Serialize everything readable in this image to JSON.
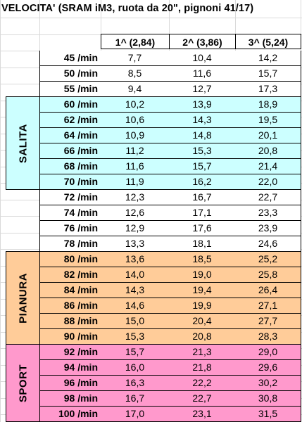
{
  "title": "VELOCITA' (SRAM iM3, ruota da 20\", pignoni 41/17)",
  "columns": [
    "1^ (2,84)",
    "2^ (3,86)",
    "3^ (5,24)"
  ],
  "colors": {
    "salita": "#ccffff",
    "pianura": "#ffcc99",
    "sport": "#ff99cc",
    "none": "#ffffff"
  },
  "groups": [
    {
      "label": "SALITA",
      "start": 60,
      "end": 70,
      "color": "#ccffff"
    },
    {
      "label": "PIANURA",
      "start": 80,
      "end": 90,
      "color": "#ffcc99"
    },
    {
      "label": "SPORT",
      "start": 92,
      "end": 100,
      "color": "#ff99cc"
    }
  ],
  "rows": [
    {
      "rpm": "45 /min",
      "v": [
        "7,7",
        "10,4",
        "14,2"
      ],
      "group": "none"
    },
    {
      "rpm": "50 /min",
      "v": [
        "8,5",
        "11,6",
        "15,7"
      ],
      "group": "none"
    },
    {
      "rpm": "55 /min",
      "v": [
        "9,4",
        "12,7",
        "17,3"
      ],
      "group": "none"
    },
    {
      "rpm": "60 /min",
      "v": [
        "10,2",
        "13,9",
        "18,9"
      ],
      "group": "salita"
    },
    {
      "rpm": "62 /min",
      "v": [
        "10,6",
        "14,3",
        "19,5"
      ],
      "group": "salita"
    },
    {
      "rpm": "64 /min",
      "v": [
        "10,9",
        "14,8",
        "20,1"
      ],
      "group": "salita"
    },
    {
      "rpm": "66 /min",
      "v": [
        "11,2",
        "15,3",
        "20,8"
      ],
      "group": "salita"
    },
    {
      "rpm": "68 /min",
      "v": [
        "11,6",
        "15,7",
        "21,4"
      ],
      "group": "salita"
    },
    {
      "rpm": "70 /min",
      "v": [
        "11,9",
        "16,2",
        "22,0"
      ],
      "group": "salita"
    },
    {
      "rpm": "72 /min",
      "v": [
        "12,3",
        "16,7",
        "22,7"
      ],
      "group": "none"
    },
    {
      "rpm": "74 /min",
      "v": [
        "12,6",
        "17,1",
        "23,3"
      ],
      "group": "none"
    },
    {
      "rpm": "76 /min",
      "v": [
        "12,9",
        "17,6",
        "23,9"
      ],
      "group": "none"
    },
    {
      "rpm": "78 /min",
      "v": [
        "13,3",
        "18,1",
        "24,6"
      ],
      "group": "none"
    },
    {
      "rpm": "80 /min",
      "v": [
        "13,6",
        "18,5",
        "25,2"
      ],
      "group": "pianura"
    },
    {
      "rpm": "82 /min",
      "v": [
        "14,0",
        "19,0",
        "25,8"
      ],
      "group": "pianura"
    },
    {
      "rpm": "84 /min",
      "v": [
        "14,3",
        "19,4",
        "26,4"
      ],
      "group": "pianura"
    },
    {
      "rpm": "86 /min",
      "v": [
        "14,6",
        "19,9",
        "27,1"
      ],
      "group": "pianura"
    },
    {
      "rpm": "88 /min",
      "v": [
        "15,0",
        "20,4",
        "27,7"
      ],
      "group": "pianura"
    },
    {
      "rpm": "90 /min",
      "v": [
        "15,3",
        "20,8",
        "28,3"
      ],
      "group": "pianura"
    },
    {
      "rpm": "92 /min",
      "v": [
        "15,7",
        "21,3",
        "29,0"
      ],
      "group": "sport"
    },
    {
      "rpm": "94 /min",
      "v": [
        "16,0",
        "21,8",
        "29,6"
      ],
      "group": "sport"
    },
    {
      "rpm": "96 /min",
      "v": [
        "16,3",
        "22,2",
        "30,2"
      ],
      "group": "sport"
    },
    {
      "rpm": "98 /min",
      "v": [
        "16,7",
        "22,7",
        "30,8"
      ],
      "group": "sport"
    },
    {
      "rpm": "100 /min",
      "v": [
        "17,0",
        "23,1",
        "31,5"
      ],
      "group": "sport"
    }
  ]
}
